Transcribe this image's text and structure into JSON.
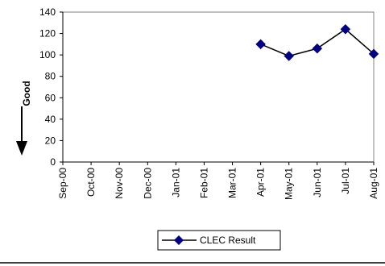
{
  "chart_data": {
    "type": "line",
    "categories": [
      "Sep-00",
      "Oct-00",
      "Nov-00",
      "Dec-00",
      "Jan-01",
      "Feb-01",
      "Mar-01",
      "Apr-01",
      "May-01",
      "Jun-01",
      "Jul-01",
      "Aug-01"
    ],
    "series": [
      {
        "name": "CLEC Result",
        "values": [
          null,
          null,
          null,
          null,
          null,
          null,
          null,
          110,
          99,
          106,
          124,
          101
        ]
      }
    ],
    "ylabel": "Good",
    "ylim": [
      0,
      140
    ],
    "yticks": [
      0,
      20,
      40,
      60,
      80,
      100,
      120,
      140
    ],
    "grid": false,
    "legend_position": "bottom",
    "series_color": "#000080",
    "line_color": "#000000"
  }
}
